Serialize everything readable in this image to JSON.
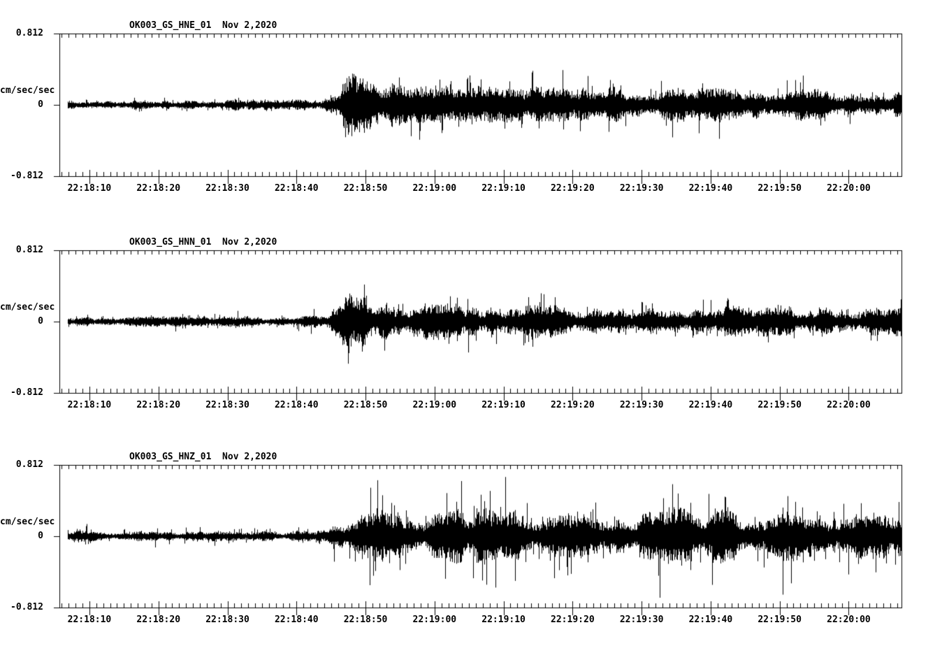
{
  "page": {
    "background": "#ffffff",
    "ink": "#000000"
  },
  "y_axis": {
    "max_label": "0.812",
    "zero_label": "0",
    "min_label": "-0.812",
    "unit_label": "cm/sec/sec"
  },
  "x_axis": {
    "tick_labels": [
      "22:18:10",
      "22:18:20",
      "22:18:30",
      "22:18:40",
      "22:18:50",
      "22:19:00",
      "22:19:10",
      "22:19:20",
      "22:19:30",
      "22:19:40",
      "22:19:50",
      "22:20:00"
    ]
  },
  "chart_data": [
    {
      "type": "line",
      "title": "OK003_GS_HNE_01  Nov 2,2020",
      "station_channel": "OK003_GS_HNE_01",
      "date": "Nov 2,2020",
      "ylabel": "cm/sec/sec",
      "ylim": [
        -0.812,
        0.812
      ],
      "x_start": "22:18:05",
      "x_end": "22:20:07",
      "x_major_tick_seconds": 10,
      "x_minor_tick_seconds": 1,
      "x_tick_labels": [
        "22:18:10",
        "22:18:20",
        "22:18:30",
        "22:18:40",
        "22:18:50",
        "22:19:00",
        "22:19:10",
        "22:19:20",
        "22:19:30",
        "22:19:40",
        "22:19:50",
        "22:20:00"
      ],
      "event_onset": "22:18:47",
      "envelope_points_t_s_amp_cm_s2": [
        [
          0,
          0.048
        ],
        [
          36,
          0.048
        ],
        [
          40,
          0.064
        ],
        [
          41.5,
          0.207
        ],
        [
          43,
          0.255
        ],
        [
          45,
          0.191
        ],
        [
          50,
          0.143
        ],
        [
          70,
          0.135
        ],
        [
          121,
          0.119
        ]
      ],
      "max_amplitude": 0.46,
      "seed": 11,
      "spike_probability": 0.06,
      "spike_multiplier": 2.2
    },
    {
      "type": "line",
      "title": "OK003_GS_HNN_01  Nov 2,2020",
      "station_channel": "OK003_GS_HNN_01",
      "date": "Nov 2,2020",
      "ylabel": "cm/sec/sec",
      "ylim": [
        -0.812,
        0.812
      ],
      "x_start": "22:18:05",
      "x_end": "22:20:07",
      "x_major_tick_seconds": 10,
      "x_minor_tick_seconds": 1,
      "x_tick_labels": [
        "22:18:10",
        "22:18:20",
        "22:18:30",
        "22:18:40",
        "22:18:50",
        "22:19:00",
        "22:19:10",
        "22:19:20",
        "22:19:30",
        "22:19:40",
        "22:19:50",
        "22:20:00"
      ],
      "event_onset": "22:18:47",
      "envelope_points_t_s_amp_cm_s2": [
        [
          0,
          0.04
        ],
        [
          35,
          0.04
        ],
        [
          39,
          0.056
        ],
        [
          41.5,
          0.223
        ],
        [
          43.5,
          0.271
        ],
        [
          46,
          0.175
        ],
        [
          50,
          0.135
        ],
        [
          80,
          0.127
        ],
        [
          121,
          0.111
        ]
      ],
      "max_amplitude": 0.48,
      "seed": 22,
      "spike_probability": 0.06,
      "spike_multiplier": 2.2
    },
    {
      "type": "line",
      "title": "OK003_GS_HNZ_01  Nov 2,2020",
      "station_channel": "OK003_GS_HNZ_01",
      "date": "Nov 2,2020",
      "ylabel": "cm/sec/sec",
      "ylim": [
        -0.812,
        0.812
      ],
      "x_start": "22:18:05",
      "x_end": "22:20:07",
      "x_major_tick_seconds": 10,
      "x_minor_tick_seconds": 1,
      "x_tick_labels": [
        "22:18:10",
        "22:18:20",
        "22:18:30",
        "22:18:40",
        "22:18:50",
        "22:19:00",
        "22:19:10",
        "22:19:20",
        "22:19:30",
        "22:19:40",
        "22:19:50",
        "22:20:00"
      ],
      "event_onset": "22:18:47",
      "envelope_points_t_s_amp_cm_s2": [
        [
          0,
          0.04
        ],
        [
          26,
          0.04
        ],
        [
          28.5,
          0.072
        ],
        [
          30,
          0.04
        ],
        [
          36,
          0.048
        ],
        [
          39,
          0.072
        ],
        [
          42,
          0.159
        ],
        [
          44,
          0.207
        ],
        [
          50,
          0.199
        ],
        [
          60,
          0.207
        ],
        [
          75,
          0.199
        ],
        [
          90,
          0.215
        ],
        [
          105,
          0.191
        ],
        [
          121,
          0.199
        ]
      ],
      "max_amplitude": 0.7,
      "seed": 33,
      "spike_probability": 0.09,
      "spike_multiplier": 2.6
    }
  ]
}
